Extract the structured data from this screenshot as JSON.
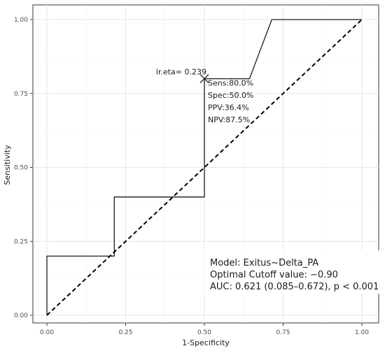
{
  "chart_data": {
    "type": "line",
    "title": "",
    "xlabel": "1-Specificity",
    "ylabel": "Sensitivity",
    "xlim": [
      0,
      1
    ],
    "ylim": [
      0,
      1
    ],
    "grid": true,
    "x_ticks": [
      {
        "value": 0.0,
        "label": "0.00"
      },
      {
        "value": 0.25,
        "label": "0.25"
      },
      {
        "value": 0.5,
        "label": "0.50"
      },
      {
        "value": 0.75,
        "label": "0.75"
      },
      {
        "value": 1.0,
        "label": "1.00"
      }
    ],
    "y_ticks": [
      {
        "value": 0.0,
        "label": "0.00"
      },
      {
        "value": 0.25,
        "label": "0.25"
      },
      {
        "value": 0.5,
        "label": "0.50"
      },
      {
        "value": 0.75,
        "label": "0.75"
      },
      {
        "value": 1.0,
        "label": "1.00"
      }
    ],
    "series": [
      {
        "style": "solid",
        "color": "#1a1a1a",
        "points": [
          [
            0.0,
            0.0
          ],
          [
            0.0,
            0.2
          ],
          [
            0.214,
            0.2
          ],
          [
            0.214,
            0.4
          ],
          [
            0.5,
            0.4
          ],
          [
            0.5,
            0.8
          ],
          [
            0.643,
            0.8
          ],
          [
            0.714,
            1.0
          ],
          [
            1.0,
            1.0
          ]
        ]
      },
      {
        "style": "dashed",
        "color": "#000000",
        "points": [
          [
            0.0,
            0.0
          ],
          [
            1.0,
            1.0
          ]
        ]
      }
    ],
    "optimal_point": {
      "x": 0.5,
      "y": 0.8,
      "label": "lr.eta= 0.239",
      "stats": [
        "Sens:80.0%",
        "Spec:50.0%",
        "PPV:36.4%",
        "NPV:87.5%"
      ]
    },
    "model_box": {
      "lines": [
        "Model: Exitus~Delta_PA",
        "Optimal Cutoff value: −0.90",
        "AUC: 0.621 (0.085–0.672), p < 0.001"
      ]
    }
  }
}
